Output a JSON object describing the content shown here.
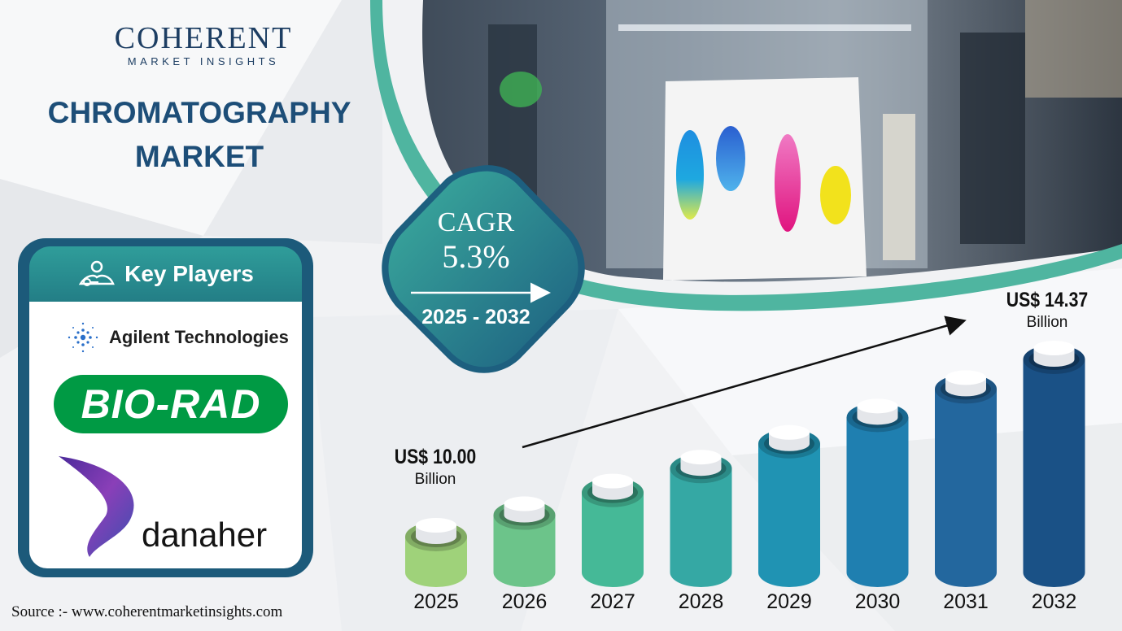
{
  "brand": {
    "name": "COHERENT",
    "tagline": "MARKET INSIGHTS"
  },
  "title": {
    "line1": "CHROMATOGRAPHY",
    "line2": "MARKET"
  },
  "key_players": {
    "heading": "Key Players",
    "companies": [
      "Agilent Technologies",
      "BIO-RAD",
      "danaher"
    ]
  },
  "cagr": {
    "label": "CAGR",
    "value": "5.3%",
    "period": "2025 - 2032"
  },
  "start_value": {
    "amount": "US$ 10.00",
    "unit": "Billion"
  },
  "end_value": {
    "amount": "US$ 14.37",
    "unit": "Billion"
  },
  "source": "Source :- www.coherentmarketinsights.com",
  "colors": {
    "navy": "#1d4e78",
    "teal": "#2a9d9b",
    "bar_colors": [
      "#9fd27a",
      "#6cc48a",
      "#45b997",
      "#35a8a4",
      "#2093b3",
      "#1f7fb0",
      "#23679e",
      "#1a5186"
    ]
  },
  "chart_data": {
    "type": "bar",
    "categories": [
      "2025",
      "2026",
      "2027",
      "2028",
      "2029",
      "2030",
      "2031",
      "2032"
    ],
    "values": [
      10.0,
      10.53,
      11.09,
      11.68,
      12.29,
      12.94,
      13.64,
      14.37
    ],
    "labeled_values": {
      "2025": "US$ 10.00 Billion",
      "2032": "US$ 14.37 Billion"
    }
  }
}
